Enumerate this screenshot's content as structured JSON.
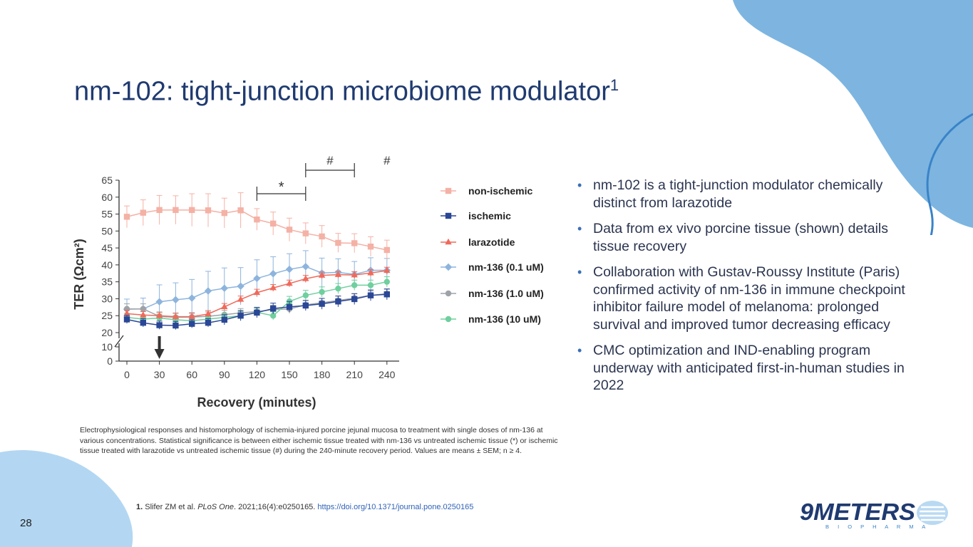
{
  "slide": {
    "title": "nm-102: tight-junction microbiome modulator",
    "title_superscript": "1",
    "page_number": "28",
    "colors": {
      "title": "#1f3a70",
      "accent_blue": "#6fa6d8",
      "bullet": "#3a6fb7"
    }
  },
  "bullets": [
    "nm-102 is a tight-junction modulator chemically distinct from larazotide",
    "Data from ex vivo porcine tissue (shown) details tissue recovery",
    "Collaboration with Gustav-Roussy Institute (Paris) confirmed activity of nm-136 in immune checkpoint inhibitor failure model of melanoma: prolonged survival and improved tumor decreasing efficacy",
    "CMC optimization and IND-enabling program underway with anticipated first-in-human studies in 2022"
  ],
  "caption": "Electrophysiological responses and histomorphology of ischemia-injured porcine jejunal mucosa to treatment with single doses of nm-136 at various concentrations. Statistical significance is between either ischemic tissue treated with nm-136 vs untreated ischemic tissue (*) or ischemic tissue treated with larazotide vs untreated ischemic tissue (#) during the 240-minute recovery period. Values are means ± SEM; n ≥ 4.",
  "footnote": {
    "number": "1.",
    "text_before": " Slifer ZM et al. ",
    "journal": "PLoS One",
    "text_after": ". 2021;16(4):e0250165. ",
    "link": "https://doi.org/10.1371/journal.pone.0250165"
  },
  "logo": {
    "brand": "9METERS",
    "sub": "B I O P H A R M A"
  },
  "chart_data": {
    "type": "line",
    "title": "",
    "xlabel": "Recovery (minutes)",
    "ylabel": "TER (Ωcm²)",
    "x": [
      0,
      15,
      30,
      45,
      60,
      75,
      90,
      105,
      120,
      135,
      150,
      165,
      180,
      195,
      210,
      225,
      240
    ],
    "xticks": [
      0,
      30,
      60,
      90,
      120,
      150,
      180,
      210,
      240
    ],
    "yticks": [
      0,
      10,
      20,
      25,
      30,
      35,
      40,
      45,
      50,
      55,
      60,
      65
    ],
    "ylim": [
      0,
      65
    ],
    "axis_break": [
      10,
      20
    ],
    "arrow_at_x": 30,
    "annotations": [
      {
        "symbol": "*",
        "x_start": 120,
        "x_end": 165
      },
      {
        "symbol": "#",
        "x_start": 165,
        "x_end": 210
      },
      {
        "symbol": "#",
        "x_start": 240,
        "x_end": 240
      }
    ],
    "legend_position": "right",
    "series": [
      {
        "name": "non-ischemic",
        "color": "#f4b1a5",
        "marker": "square",
        "values": [
          54.2,
          55.4,
          56.2,
          56.2,
          56.2,
          56.1,
          55.3,
          56.1,
          53.4,
          52.2,
          50.4,
          49.3,
          48.4,
          46.5,
          46.4,
          45.4,
          44.4
        ],
        "errors": [
          3.2,
          3.8,
          4.3,
          4.2,
          4.8,
          4.9,
          4.4,
          5.2,
          3.2,
          3.4,
          3.4,
          3.1,
          3.2,
          2.8,
          2.8,
          2.9,
          2.9
        ]
      },
      {
        "name": "ischemic",
        "color": "#2a4796",
        "marker": "square",
        "values": [
          23.9,
          22.9,
          22.2,
          22.1,
          22.6,
          22.9,
          23.8,
          25.0,
          25.9,
          27.1,
          27.6,
          28.0,
          28.5,
          29.2,
          29.9,
          31.0,
          31.3
        ],
        "errors": [
          1.2,
          1.2,
          1.2,
          1.2,
          1.2,
          1.2,
          1.5,
          1.5,
          1.5,
          1.6,
          1.6,
          1.5,
          1.6,
          1.6,
          1.6,
          1.6,
          1.6
        ]
      },
      {
        "name": "larazotide",
        "color": "#ef6a5b",
        "marker": "triangle",
        "values": [
          25.6,
          25.2,
          25.0,
          24.7,
          24.7,
          25.5,
          27.6,
          29.8,
          31.8,
          33.2,
          34.5,
          35.9,
          36.9,
          37.1,
          37.0,
          37.6,
          38.3
        ],
        "errors": [
          1.0,
          1.0,
          1.0,
          1.0,
          1.0,
          1.0,
          1.0,
          1.0,
          1.0,
          1.0,
          1.0,
          1.0,
          1.0,
          1.0,
          1.0,
          1.0,
          1.0
        ]
      },
      {
        "name": "nm-136 (0.1 uM)",
        "color": "#8db4dd",
        "marker": "diamond",
        "values": [
          26.9,
          27.0,
          29.1,
          29.7,
          30.2,
          32.3,
          33.1,
          33.7,
          36.0,
          37.4,
          38.7,
          39.5,
          37.6,
          37.8,
          37.2,
          38.4,
          38.4
        ],
        "errors": [
          3.0,
          3.2,
          5.0,
          5.0,
          5.5,
          5.8,
          6.0,
          5.5,
          5.5,
          5.0,
          4.6,
          4.7,
          4.4,
          4.0,
          3.8,
          3.7,
          3.5
        ]
      },
      {
        "name": "nm-136 (1.0 uM)",
        "color": "#9ea3a8",
        "marker": "circle",
        "values": [
          27.0,
          27.0,
          24.8,
          24.5,
          24.6,
          24.8,
          25.3,
          25.8,
          26.2,
          26.8,
          27.0,
          28.2,
          28.8,
          29.5,
          30.2,
          31.0,
          31.5
        ],
        "errors": [
          1.5,
          1.5,
          1.3,
          1.3,
          1.3,
          1.3,
          1.3,
          1.3,
          1.3,
          1.3,
          1.3,
          1.3,
          1.3,
          1.3,
          1.3,
          1.3,
          1.3
        ]
      },
      {
        "name": "nm-136 (10 uM)",
        "color": "#6fcf9e",
        "marker": "circle",
        "values": [
          24.5,
          24.0,
          24.3,
          23.8,
          23.5,
          24.0,
          24.5,
          25.0,
          26.0,
          25.0,
          29.2,
          31.0,
          32.0,
          33.0,
          34.0,
          34.0,
          35.0
        ],
        "errors": [
          1.2,
          1.2,
          1.2,
          1.2,
          1.2,
          1.2,
          1.2,
          1.2,
          1.2,
          1.2,
          1.5,
          1.5,
          1.5,
          1.5,
          1.5,
          1.5,
          1.5
        ]
      }
    ]
  }
}
